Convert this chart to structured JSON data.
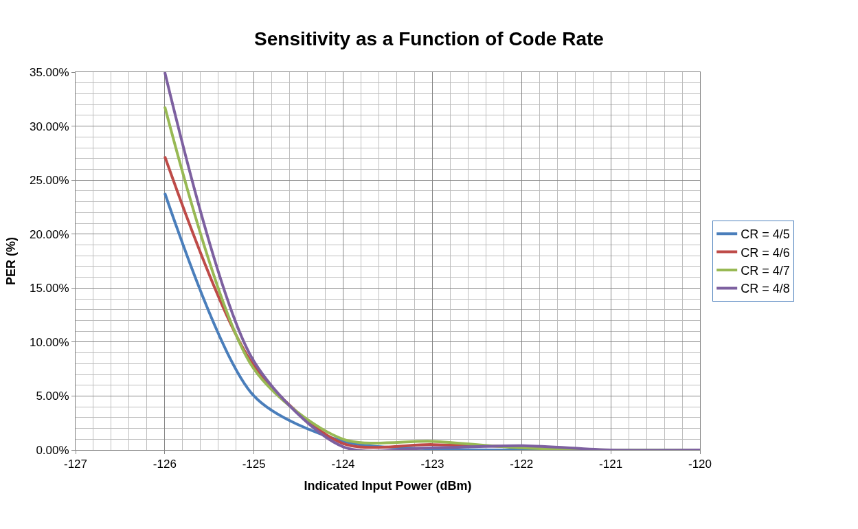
{
  "chart_data": {
    "type": "line",
    "title": "Sensitivity as a Function of Code Rate",
    "xlabel": "Indicated Input Power (dBm)",
    "ylabel": "PER (%)",
    "x": [
      -126,
      -125,
      -124,
      -123,
      -122,
      -121,
      -120
    ],
    "series": [
      {
        "name": "CR = 4/5",
        "color": "#4a7ebb",
        "values": [
          23.8,
          5.0,
          0.8,
          0.1,
          0.0,
          0.0,
          0.0
        ]
      },
      {
        "name": "CR = 4/6",
        "color": "#be4b48",
        "values": [
          27.2,
          7.8,
          0.6,
          0.5,
          0.3,
          null,
          null
        ]
      },
      {
        "name": "CR = 4/7",
        "color": "#98b954",
        "values": [
          31.8,
          7.5,
          1.0,
          0.8,
          0.2,
          0.0,
          0.0
        ]
      },
      {
        "name": "CR = 4/8",
        "color": "#7d60a0",
        "values": [
          35.0,
          8.2,
          0.3,
          0.2,
          0.4,
          0.0,
          0.0
        ]
      }
    ],
    "xlim": [
      -127,
      -120
    ],
    "xticks": [
      -127,
      -126,
      -125,
      -124,
      -123,
      -122,
      -121,
      -120
    ],
    "ylim": [
      0,
      35
    ],
    "yticks": [
      {
        "value": 0,
        "label": "0.00%"
      },
      {
        "value": 5,
        "label": "5.00%"
      },
      {
        "value": 10,
        "label": "10.00%"
      },
      {
        "value": 15,
        "label": "15.00%"
      },
      {
        "value": 20,
        "label": "20.00%"
      },
      {
        "value": 25,
        "label": "25.00%"
      },
      {
        "value": 30,
        "label": "30.00%"
      },
      {
        "value": 35,
        "label": "35.00%"
      }
    ],
    "grid": true,
    "legend": "right",
    "marker": "none",
    "line_style": "solid"
  }
}
